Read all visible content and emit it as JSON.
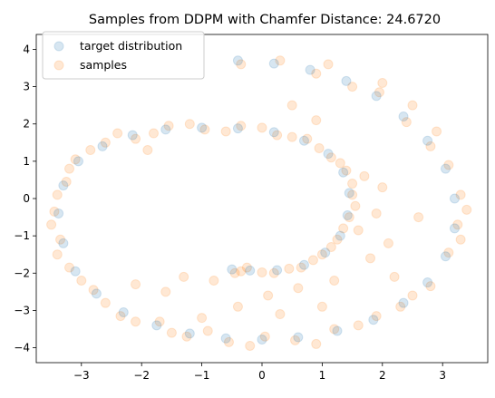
{
  "chart_data": {
    "type": "scatter",
    "title": "Samples from DDPM with Chamfer Distance: 24.6720",
    "xlabel": "",
    "ylabel": "",
    "xlim": [
      -3.75,
      3.75
    ],
    "ylim": [
      -4.4,
      4.4
    ],
    "x_ticks": [
      -3,
      -2,
      -1,
      0,
      1,
      2,
      3
    ],
    "y_ticks": [
      -4,
      -3,
      -2,
      -1,
      0,
      1,
      2,
      3,
      4
    ],
    "x_tick_labels": [
      "−3",
      "−2",
      "−1",
      "0",
      "1",
      "2",
      "3"
    ],
    "y_tick_labels": [
      "−4",
      "−3",
      "−2",
      "−1",
      "0",
      "1",
      "2",
      "3",
      "4"
    ],
    "grid": false,
    "legend_position": "top-left",
    "series": [
      {
        "name": "target distribution",
        "color": "#1f77b4",
        "description_shape": "spiral",
        "points": [
          [
            -0.4,
            3.7
          ],
          [
            0.2,
            3.62
          ],
          [
            0.8,
            3.45
          ],
          [
            1.4,
            3.15
          ],
          [
            1.9,
            2.75
          ],
          [
            2.35,
            2.2
          ],
          [
            2.75,
            1.55
          ],
          [
            3.05,
            0.8
          ],
          [
            3.2,
            0.0
          ],
          [
            3.2,
            -0.8
          ],
          [
            3.05,
            -1.55
          ],
          [
            2.75,
            -2.25
          ],
          [
            2.35,
            -2.8
          ],
          [
            1.85,
            -3.25
          ],
          [
            1.25,
            -3.55
          ],
          [
            0.6,
            -3.72
          ],
          [
            0.0,
            -3.78
          ],
          [
            -0.6,
            -3.75
          ],
          [
            -1.2,
            -3.62
          ],
          [
            -1.75,
            -3.4
          ],
          [
            -2.3,
            -3.05
          ],
          [
            -2.75,
            -2.55
          ],
          [
            -3.1,
            -1.95
          ],
          [
            -3.3,
            -1.2
          ],
          [
            -3.38,
            -0.4
          ],
          [
            -3.3,
            0.35
          ],
          [
            -3.05,
            1.0
          ],
          [
            -2.65,
            1.4
          ],
          [
            -2.15,
            1.7
          ],
          [
            -1.6,
            1.85
          ],
          [
            -1.0,
            1.9
          ],
          [
            -0.4,
            1.88
          ],
          [
            0.2,
            1.78
          ],
          [
            0.7,
            1.55
          ],
          [
            1.1,
            1.2
          ],
          [
            1.35,
            0.7
          ],
          [
            1.45,
            0.15
          ],
          [
            1.42,
            -0.45
          ],
          [
            1.3,
            -1.0
          ],
          [
            1.05,
            -1.45
          ],
          [
            0.7,
            -1.78
          ],
          [
            0.25,
            -1.92
          ],
          [
            -0.2,
            -1.93
          ],
          [
            -0.5,
            -1.9
          ]
        ]
      },
      {
        "name": "samples",
        "color": "#ff7f0e",
        "points": [
          [
            -0.35,
            3.6
          ],
          [
            0.3,
            3.7
          ],
          [
            0.9,
            3.35
          ],
          [
            1.5,
            3.0
          ],
          [
            1.95,
            2.85
          ],
          [
            2.4,
            2.05
          ],
          [
            2.8,
            1.4
          ],
          [
            3.1,
            0.9
          ],
          [
            3.3,
            0.1
          ],
          [
            3.25,
            -0.7
          ],
          [
            3.1,
            -1.45
          ],
          [
            2.8,
            -2.35
          ],
          [
            2.3,
            -2.9
          ],
          [
            1.9,
            -3.15
          ],
          [
            1.2,
            -3.5
          ],
          [
            0.55,
            -3.8
          ],
          [
            0.05,
            -3.7
          ],
          [
            -0.55,
            -3.85
          ],
          [
            -1.25,
            -3.7
          ],
          [
            -1.7,
            -3.3
          ],
          [
            -2.35,
            -3.15
          ],
          [
            -2.8,
            -2.45
          ],
          [
            -3.2,
            -1.85
          ],
          [
            -3.35,
            -1.1
          ],
          [
            -3.45,
            -0.35
          ],
          [
            -3.25,
            0.45
          ],
          [
            -3.1,
            1.05
          ],
          [
            -2.6,
            1.5
          ],
          [
            -2.1,
            1.6
          ],
          [
            -1.55,
            1.95
          ],
          [
            -0.95,
            1.85
          ],
          [
            -0.35,
            1.95
          ],
          [
            0.25,
            1.7
          ],
          [
            0.75,
            1.6
          ],
          [
            1.15,
            1.1
          ],
          [
            1.4,
            0.75
          ],
          [
            1.5,
            0.1
          ],
          [
            1.45,
            -0.5
          ],
          [
            1.25,
            -1.1
          ],
          [
            1.0,
            -1.5
          ],
          [
            0.65,
            -1.85
          ],
          [
            0.2,
            -2.0
          ],
          [
            -0.25,
            -1.85
          ],
          [
            -0.45,
            -2.0
          ],
          [
            1.6,
            -0.85
          ],
          [
            1.9,
            -0.4
          ],
          [
            2.1,
            -1.2
          ],
          [
            1.7,
            0.6
          ],
          [
            2.0,
            0.3
          ],
          [
            -0.8,
            -2.2
          ],
          [
            -1.3,
            -2.1
          ],
          [
            -1.6,
            -2.5
          ],
          [
            0.1,
            -2.6
          ],
          [
            0.6,
            -2.4
          ],
          [
            1.0,
            -2.9
          ],
          [
            -0.4,
            -2.9
          ],
          [
            0.5,
            2.5
          ],
          [
            1.8,
            -1.6
          ],
          [
            2.6,
            -0.5
          ],
          [
            -1.9,
            1.3
          ],
          [
            0.9,
            2.1
          ],
          [
            -2.1,
            -2.3
          ],
          [
            1.2,
            -2.2
          ],
          [
            0.3,
            -3.1
          ],
          [
            -1.0,
            -3.2
          ],
          [
            2.2,
            -2.1
          ],
          [
            1.1,
            3.6
          ],
          [
            2.0,
            3.1
          ],
          [
            2.5,
            2.5
          ],
          [
            2.9,
            1.8
          ],
          [
            3.4,
            -0.3
          ],
          [
            3.3,
            -1.1
          ],
          [
            2.5,
            -2.6
          ],
          [
            1.6,
            -3.4
          ],
          [
            0.9,
            -3.9
          ],
          [
            -0.2,
            -3.95
          ],
          [
            -0.9,
            -3.55
          ],
          [
            -1.5,
            -3.6
          ],
          [
            -2.1,
            -3.3
          ],
          [
            -2.6,
            -2.8
          ],
          [
            -3.0,
            -2.2
          ],
          [
            -3.4,
            -1.5
          ],
          [
            -3.5,
            -0.7
          ],
          [
            -3.4,
            0.1
          ],
          [
            -3.2,
            0.8
          ],
          [
            -2.85,
            1.3
          ],
          [
            -2.4,
            1.75
          ],
          [
            -1.8,
            1.75
          ],
          [
            -1.2,
            2.0
          ],
          [
            -0.6,
            1.8
          ],
          [
            0.0,
            1.9
          ],
          [
            0.5,
            1.65
          ],
          [
            0.95,
            1.35
          ],
          [
            1.3,
            0.95
          ],
          [
            1.5,
            0.4
          ],
          [
            1.55,
            -0.2
          ],
          [
            1.35,
            -0.8
          ],
          [
            1.15,
            -1.3
          ],
          [
            0.85,
            -1.65
          ],
          [
            0.45,
            -1.88
          ],
          [
            0.0,
            -1.98
          ],
          [
            -0.35,
            -1.95
          ]
        ]
      }
    ]
  }
}
